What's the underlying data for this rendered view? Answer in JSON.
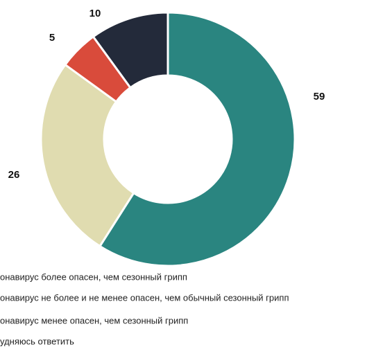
{
  "chart_data": {
    "type": "donut",
    "categories": [
      "онавирус более опасен, чем сезонный грипп",
      "онавирус не более и не менее опасен, чем обычный сезонный грипп",
      "онавирус менее опасен, чем сезонный грипп",
      "удняюсь ответить"
    ],
    "values": [
      59,
      26,
      5,
      10
    ],
    "colors": [
      "#2a8580",
      "#e0dcb0",
      "#d94b3b",
      "#232a3a"
    ]
  }
}
